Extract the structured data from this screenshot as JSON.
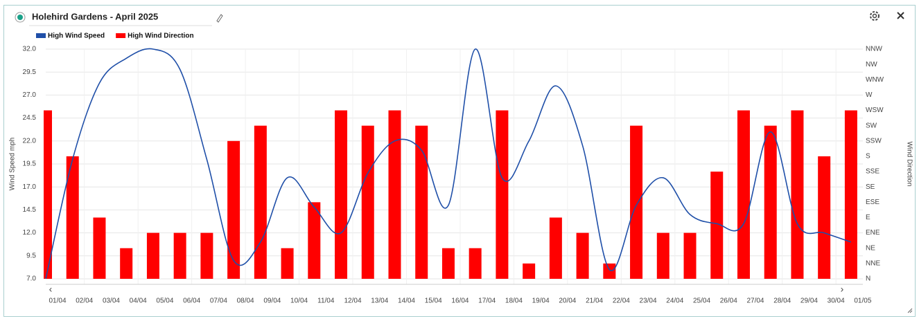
{
  "chart_data": {
    "type": "combo",
    "title": "Holehird Gardens - April 2025",
    "y_label": "Wind Speed mph",
    "y2_label": "Wind Direction",
    "categories": [
      "01/04",
      "02/04",
      "03/04",
      "04/04",
      "05/04",
      "06/04",
      "07/04",
      "08/04",
      "09/04",
      "10/04",
      "11/04",
      "12/04",
      "13/04",
      "14/04",
      "15/04",
      "16/04",
      "17/04",
      "18/04",
      "19/04",
      "20/04",
      "21/04",
      "22/04",
      "23/04",
      "24/04",
      "25/04",
      "26/04",
      "27/04",
      "28/04",
      "29/04",
      "30/04",
      "01/05"
    ],
    "series": [
      {
        "name": "High Wind Speed",
        "type": "line",
        "color": "#1f4fa8",
        "values": [
          7.0,
          20.0,
          28.3,
          31.0,
          32.0,
          29.8,
          20.0,
          9.0,
          11.0,
          18.0,
          14.8,
          12.0,
          18.5,
          22.0,
          21.0,
          15.0,
          32.0,
          18.0,
          22.0,
          28.0,
          21.5,
          8.0,
          15.0,
          18.0,
          14.0,
          13.0,
          13.0,
          23.0,
          13.0,
          12.0,
          11.0
        ]
      },
      {
        "name": "High Wind Direction",
        "type": "bar",
        "axis": "y2",
        "color": "#ff0000",
        "values": [
          11,
          8,
          4,
          2,
          3,
          3,
          3,
          9,
          10,
          2,
          5,
          11,
          10,
          11,
          10,
          2,
          2,
          11,
          1,
          4,
          3,
          1,
          10,
          3,
          3,
          7,
          11,
          10,
          11,
          8,
          11
        ]
      }
    ],
    "ylim": [
      7,
      32
    ],
    "yticks": [
      {
        "value": 7,
        "label": "7.0"
      },
      9.5,
      {
        "value": 12,
        "label": "12.0"
      },
      14.5,
      {
        "value": 17,
        "label": "17.0"
      },
      19.5,
      {
        "value": 22,
        "label": "22.0"
      },
      24.5,
      {
        "value": 27,
        "label": "27.0"
      },
      29.5,
      {
        "value": 32,
        "label": "32.0"
      }
    ],
    "y2lim": [
      0,
      15
    ],
    "y2ticks": [
      {
        "value": 0,
        "label": "N"
      },
      {
        "value": 1,
        "label": "NNE"
      },
      {
        "value": 2,
        "label": "NE"
      },
      {
        "value": 3,
        "label": "ENE"
      },
      {
        "value": 4,
        "label": "E"
      },
      {
        "value": 5,
        "label": "ESE"
      },
      {
        "value": 6,
        "label": "SE"
      },
      {
        "value": 7,
        "label": "SSE"
      },
      {
        "value": 8,
        "label": "S"
      },
      {
        "value": 9,
        "label": "SSW"
      },
      {
        "value": 10,
        "label": "SW"
      },
      {
        "value": 11,
        "label": "WSW"
      },
      {
        "value": 12,
        "label": "W"
      },
      {
        "value": 13,
        "label": "WNW"
      },
      {
        "value": 14,
        "label": "NW"
      },
      {
        "value": 15,
        "label": "NNW"
      }
    ],
    "grid": true,
    "legend": "top-left"
  }
}
